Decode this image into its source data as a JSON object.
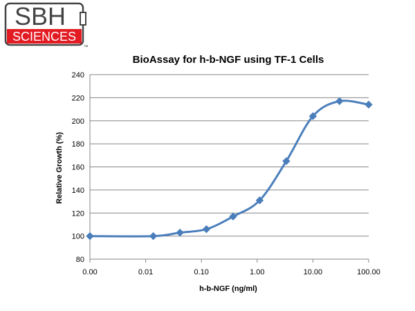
{
  "logo": {
    "top_text": "SBH",
    "bottom_text": "SCIENCES",
    "tm": "™",
    "red": "#e31b23"
  },
  "chart_data": {
    "type": "line",
    "title": "BioAssay for h-b-NGF using TF-1 Cells",
    "xlabel": "h-b-NGF (ng/ml)",
    "ylabel": "Relative Growth (%)",
    "x_scale": "log",
    "x_ticks": [
      "0.00",
      "0.01",
      "0.10",
      "1.00",
      "10.00",
      "100.00"
    ],
    "xlim": [
      0.001,
      100
    ],
    "ylim": [
      80,
      240
    ],
    "y_ticks": [
      80,
      100,
      120,
      140,
      160,
      180,
      200,
      220,
      240
    ],
    "grid": "horizontal",
    "legend": "none",
    "color": "#4a7ebb",
    "points": [
      {
        "x": 0.001,
        "y": 100
      },
      {
        "x": 0.0137,
        "y": 100
      },
      {
        "x": 0.0412,
        "y": 103
      },
      {
        "x": 0.123,
        "y": 106
      },
      {
        "x": 0.37,
        "y": 117
      },
      {
        "x": 1.11,
        "y": 131
      },
      {
        "x": 3.33,
        "y": 165
      },
      {
        "x": 10,
        "y": 204
      },
      {
        "x": 30,
        "y": 217
      },
      {
        "x": 100,
        "y": 214
      }
    ]
  }
}
